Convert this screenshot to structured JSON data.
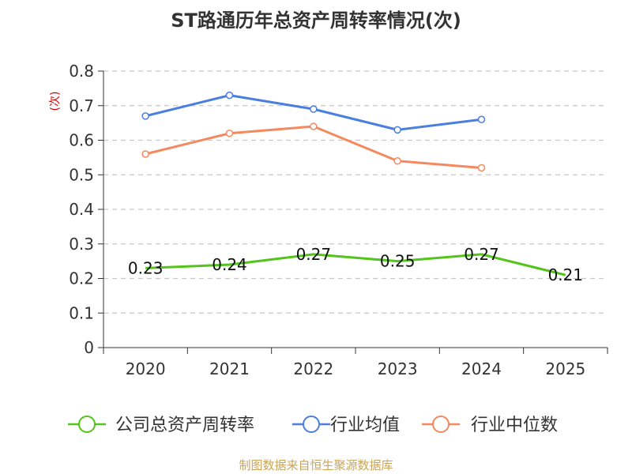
{
  "chart_data": {
    "type": "line",
    "title": "ST路通历年总资产周转率情况(次)",
    "ylabel": "(次)",
    "xlabel": "",
    "categories": [
      "2020",
      "2021",
      "2022",
      "2023",
      "2024",
      "2025"
    ],
    "ylim": [
      0,
      0.8
    ],
    "yticks": [
      0,
      0.1,
      0.2,
      0.3,
      0.4,
      0.5,
      0.6,
      0.7,
      0.8
    ],
    "ytick_labels": [
      "0",
      "0.1",
      "0.2",
      "0.3",
      "0.4",
      "0.5",
      "0.6",
      "0.7",
      "0.8"
    ],
    "grid": true,
    "legend_position": "bottom",
    "series": [
      {
        "name": "公司总资产周转率",
        "color": "#52c41a",
        "values": [
          0.23,
          0.24,
          0.27,
          0.25,
          0.27,
          0.21
        ],
        "labels": [
          "0.23",
          "0.24",
          "0.27",
          "0.25",
          "0.27",
          "0.21"
        ],
        "show_labels": true,
        "show_markers": false
      },
      {
        "name": "行业均值",
        "color": "#4a7fe0",
        "values": [
          0.67,
          0.73,
          0.69,
          0.63,
          0.66,
          null
        ],
        "show_labels": false,
        "show_markers": true
      },
      {
        "name": "行业中位数",
        "color": "#f4895f",
        "values": [
          0.56,
          0.62,
          0.64,
          0.54,
          0.52,
          null
        ],
        "show_labels": false,
        "show_markers": true
      }
    ],
    "source": "制图数据来自恒生聚源数据库"
  }
}
